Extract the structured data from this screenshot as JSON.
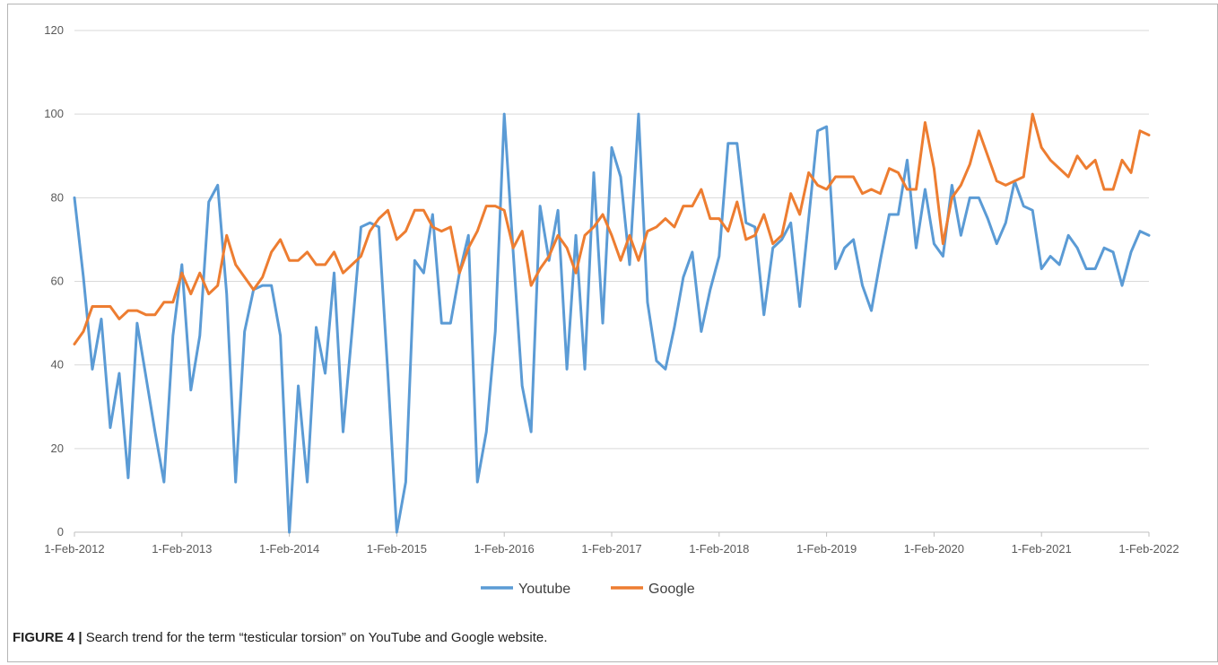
{
  "chart_data": {
    "type": "line",
    "title": "",
    "xlabel": "",
    "ylabel": "",
    "ylim": [
      0,
      120
    ],
    "y_ticks": [
      0,
      20,
      40,
      60,
      80,
      100,
      120
    ],
    "x_tick_labels": [
      "1-Feb-2012",
      "1-Feb-2013",
      "1-Feb-2014",
      "1-Feb-2015",
      "1-Feb-2016",
      "1-Feb-2017",
      "1-Feb-2018",
      "1-Feb-2019",
      "1-Feb-2020",
      "1-Feb-2021",
      "1-Feb-2022"
    ],
    "x_start": "2012-02",
    "x_end": "2022-02",
    "x_step": "monthly",
    "grid": true,
    "legend_position": "bottom",
    "series": [
      {
        "name": "Youtube",
        "color": "#5b9bd5",
        "values": [
          80,
          61,
          39,
          51,
          25,
          38,
          13,
          50,
          37,
          24,
          12,
          47,
          64,
          34,
          47,
          79,
          83,
          57,
          12,
          48,
          58,
          59,
          59,
          47,
          0,
          35,
          12,
          49,
          38,
          62,
          24,
          48,
          73,
          74,
          73,
          38,
          0,
          12,
          65,
          62,
          76,
          50,
          50,
          62,
          71,
          12,
          24,
          48,
          100,
          67,
          35,
          24,
          78,
          65,
          77,
          39,
          71,
          39,
          86,
          50,
          92,
          85,
          64,
          100,
          55,
          41,
          39,
          49,
          61,
          67,
          48,
          58,
          66,
          93,
          93,
          74,
          73,
          52,
          68,
          70,
          74,
          54,
          75,
          96,
          97,
          63,
          68,
          70,
          59,
          53,
          65,
          76,
          76,
          89,
          68,
          82,
          69,
          66,
          83,
          71,
          80,
          80,
          75,
          69,
          74,
          84,
          78,
          77,
          63,
          66,
          64,
          71,
          68,
          63,
          63,
          68,
          67,
          59,
          67,
          72,
          71
        ]
      },
      {
        "name": "Google",
        "color": "#ed7d31",
        "values": [
          45,
          48,
          54,
          54,
          54,
          51,
          53,
          53,
          52,
          52,
          55,
          55,
          62,
          57,
          62,
          57,
          59,
          71,
          64,
          61,
          58,
          61,
          67,
          70,
          65,
          65,
          67,
          64,
          64,
          67,
          62,
          64,
          66,
          72,
          75,
          77,
          70,
          72,
          77,
          77,
          73,
          72,
          73,
          62,
          68,
          72,
          78,
          78,
          77,
          68,
          72,
          59,
          63,
          66,
          71,
          68,
          62,
          71,
          73,
          76,
          71,
          65,
          71,
          65,
          72,
          73,
          75,
          73,
          78,
          78,
          82,
          75,
          75,
          72,
          79,
          70,
          71,
          76,
          69,
          71,
          81,
          76,
          86,
          83,
          82,
          85,
          85,
          85,
          81,
          82,
          81,
          87,
          86,
          82,
          82,
          98,
          87,
          69,
          80,
          83,
          88,
          96,
          90,
          84,
          83,
          84,
          85,
          100,
          92,
          89,
          87,
          85,
          90,
          87,
          89,
          82,
          82,
          89,
          86,
          96,
          95
        ]
      }
    ]
  },
  "caption": {
    "label": "FIGURE 4 |",
    "text": " Search trend for the term “testicular torsion” on YouTube and Google website."
  }
}
